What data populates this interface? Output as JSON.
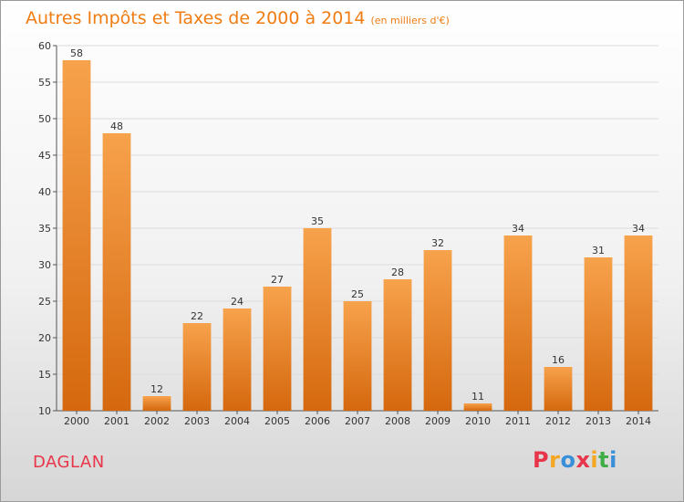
{
  "chart_data": {
    "type": "bar",
    "title": "Autres Impôts et Taxes de 2000 à 2014",
    "subtitle": "(en milliers d'€)",
    "categories": [
      "2000",
      "2001",
      "2002",
      "2003",
      "2004",
      "2005",
      "2006",
      "2007",
      "2008",
      "2009",
      "2010",
      "2011",
      "2012",
      "2013",
      "2014"
    ],
    "values": [
      58,
      48,
      12,
      22,
      24,
      27,
      35,
      25,
      28,
      32,
      11,
      34,
      16,
      31,
      34
    ],
    "ylim": [
      10,
      60
    ],
    "yticks": [
      10,
      15,
      20,
      25,
      30,
      35,
      40,
      45,
      50,
      55,
      60
    ],
    "grid": true,
    "bar_color": "#f07c12"
  },
  "footer": {
    "commune": "DAGLAN",
    "brand": "Proxiti",
    "brand_colors": [
      "#e8354a",
      "#f5a623",
      "#3a8fd9",
      "#e8354a",
      "#f5a623",
      "#3fae49",
      "#3a8fd9"
    ]
  }
}
